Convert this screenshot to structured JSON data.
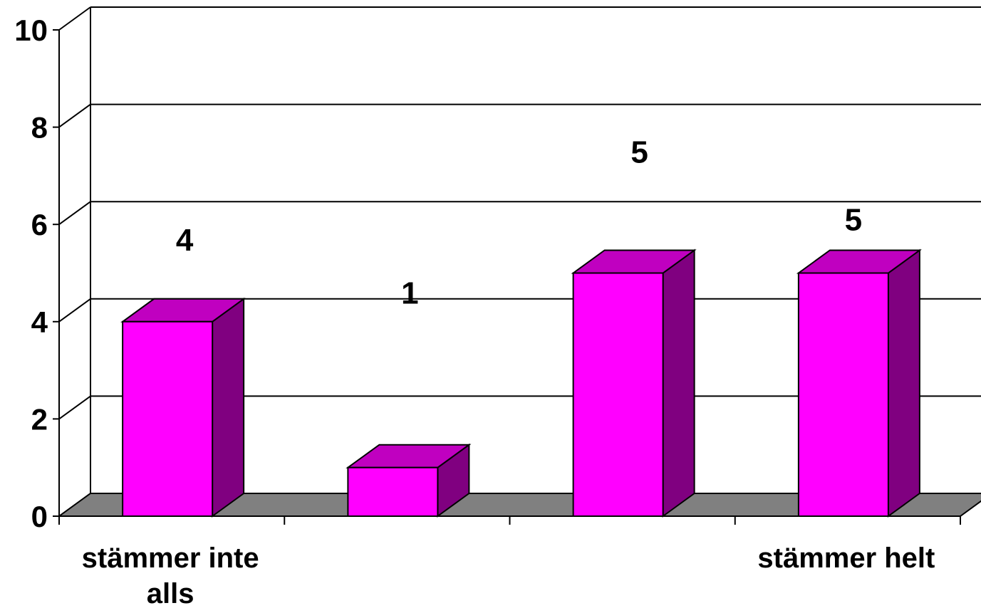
{
  "chart_data": {
    "type": "bar",
    "categories": [
      "stämmer inte alls",
      "",
      "",
      "stämmer helt"
    ],
    "values": [
      4,
      1,
      5,
      5
    ],
    "data_labels": [
      "4",
      "1",
      "5",
      "5"
    ],
    "title": "",
    "xlabel": "",
    "ylabel": "",
    "ylim": [
      0,
      10
    ],
    "yticks": [
      "0",
      "2",
      "4",
      "6",
      "8",
      "10"
    ],
    "grid": true,
    "legend": "none",
    "colors": {
      "bar_front": "#ff00ff",
      "bar_top": "#c000c0",
      "bar_side": "#800080",
      "floor": "#808080",
      "grid": "#000000"
    }
  }
}
